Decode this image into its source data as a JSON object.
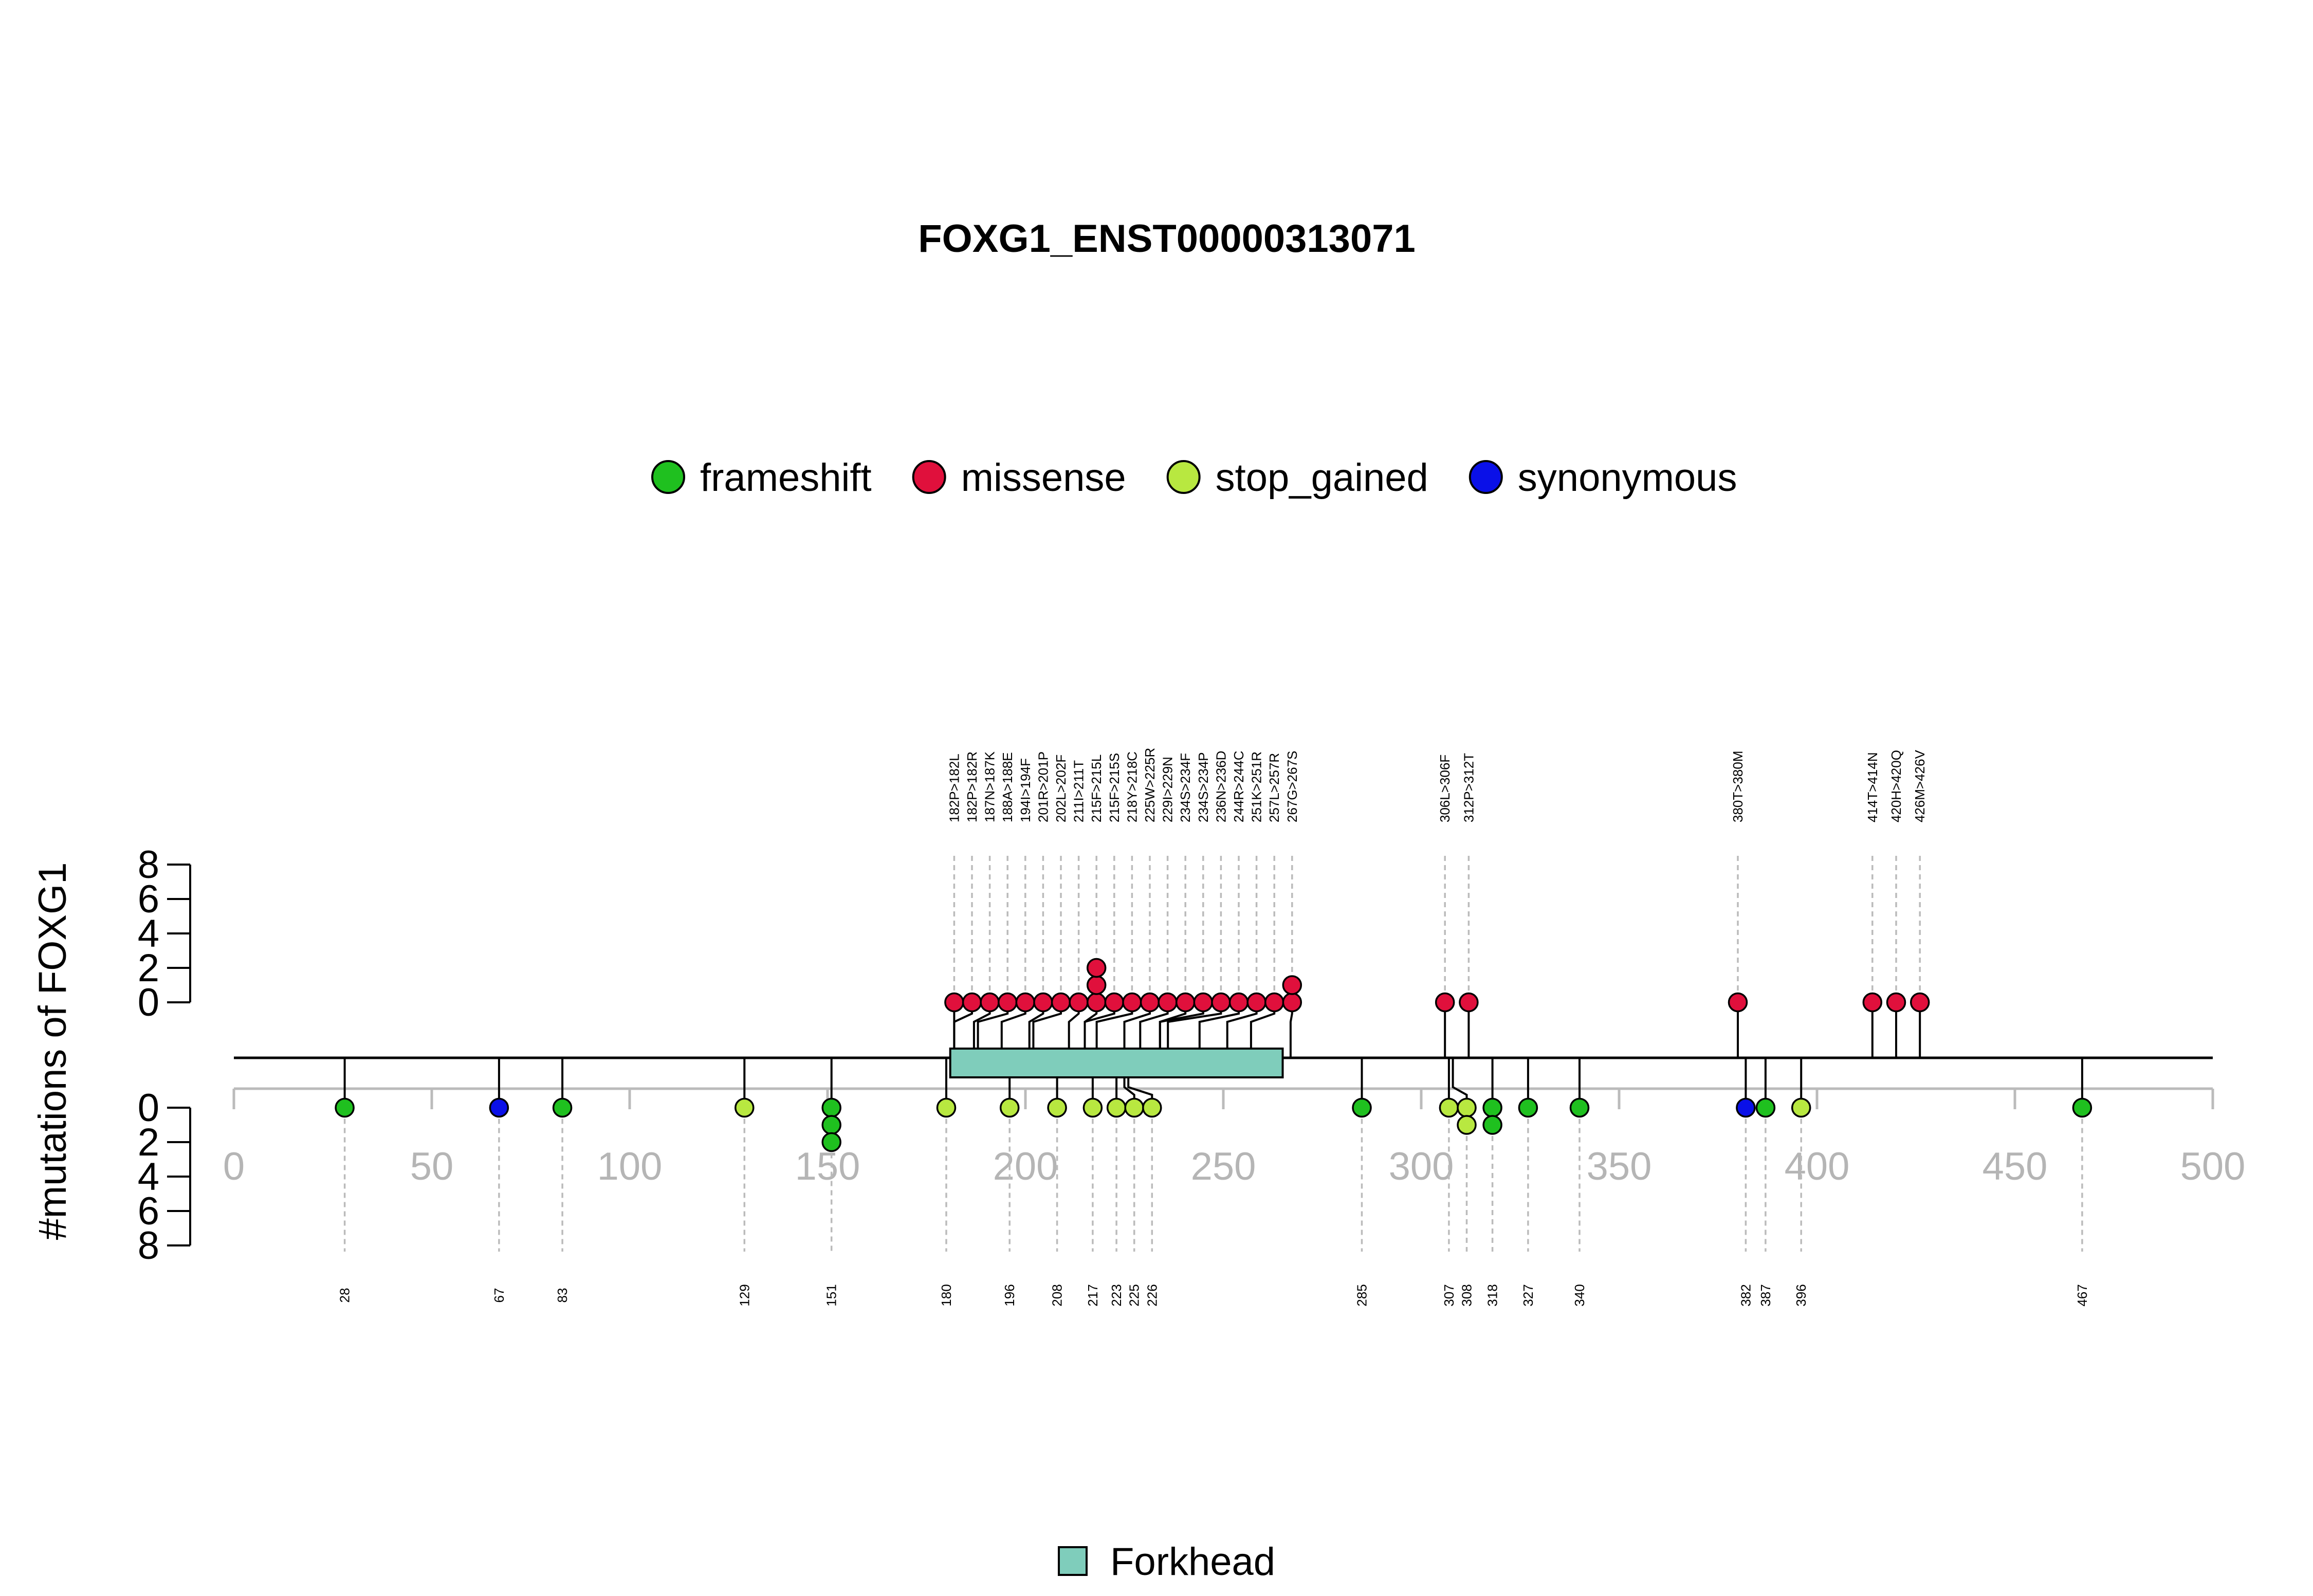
{
  "chart_data": {
    "type": "lollipop",
    "title": "FOXG1_ENST00000313071",
    "ylabel": "#mutations of FOXG1",
    "xlim": [
      0,
      500
    ],
    "x_ticks": [
      0,
      50,
      100,
      150,
      200,
      250,
      300,
      350,
      400,
      450,
      500
    ],
    "y_ticks": [
      0,
      2,
      4,
      6,
      8
    ],
    "legend": [
      {
        "name": "frameshift",
        "color": "#1FC01F"
      },
      {
        "name": "missense",
        "color": "#E0103C"
      },
      {
        "name": "stop_gained",
        "color": "#B8E840"
      },
      {
        "name": "synonymous",
        "color": "#0A10E8"
      }
    ],
    "domains": [
      {
        "name": "Forkhead",
        "start": 181,
        "end": 265,
        "color": "#7FCDBB"
      }
    ],
    "upper_mutations": [
      {
        "label": "182P>182L",
        "type": "missense",
        "count": 1
      },
      {
        "label": "182P>182R",
        "type": "missense",
        "count": 1
      },
      {
        "label": "187N>187K",
        "type": "missense",
        "count": 1
      },
      {
        "label": "188A>188E",
        "type": "missense",
        "count": 1
      },
      {
        "label": "194I>194F",
        "type": "missense",
        "count": 1
      },
      {
        "label": "201R>201P",
        "type": "missense",
        "count": 1
      },
      {
        "label": "202L>202F",
        "type": "missense",
        "count": 1
      },
      {
        "label": "211I>211T",
        "type": "missense",
        "count": 1
      },
      {
        "label": "215F>215L",
        "type": "missense",
        "count": 3
      },
      {
        "label": "215F>215S",
        "type": "missense",
        "count": 1
      },
      {
        "label": "218Y>218C",
        "type": "missense",
        "count": 1
      },
      {
        "label": "225W>225R",
        "type": "missense",
        "count": 1
      },
      {
        "label": "229I>229N",
        "type": "missense",
        "count": 1
      },
      {
        "label": "234S>234F",
        "type": "missense",
        "count": 1
      },
      {
        "label": "234S>234P",
        "type": "missense",
        "count": 1
      },
      {
        "label": "236N>236D",
        "type": "missense",
        "count": 1
      },
      {
        "label": "244R>244C",
        "type": "missense",
        "count": 1
      },
      {
        "label": "251K>251R",
        "type": "missense",
        "count": 1
      },
      {
        "label": "257L>257R",
        "type": "missense",
        "count": 1
      },
      {
        "label": "267G>267S",
        "type": "missense",
        "count": 2
      },
      {
        "label": "306L>306F",
        "type": "missense",
        "count": 1
      },
      {
        "label": "312P>312T",
        "type": "missense",
        "count": 1
      },
      {
        "label": "380T>380M",
        "type": "missense",
        "count": 1
      },
      {
        "label": "414T>414N",
        "type": "missense",
        "count": 1
      },
      {
        "label": "420H>420Q",
        "type": "missense",
        "count": 1
      },
      {
        "label": "426M>426V",
        "type": "missense",
        "count": 1
      }
    ],
    "lower_mutations": [
      {
        "label": "28",
        "type": "frameshift",
        "count": 1
      },
      {
        "label": "67",
        "type": "synonymous",
        "count": 1
      },
      {
        "label": "83",
        "type": "frameshift",
        "count": 1
      },
      {
        "label": "129",
        "type": "stop_gained",
        "count": 1
      },
      {
        "label": "151",
        "type": "frameshift",
        "count": 3
      },
      {
        "label": "180",
        "type": "stop_gained",
        "count": 1
      },
      {
        "label": "196",
        "type": "stop_gained",
        "count": 1
      },
      {
        "label": "208",
        "type": "stop_gained",
        "count": 1
      },
      {
        "label": "217",
        "type": "stop_gained",
        "count": 1
      },
      {
        "label": "223",
        "type": "stop_gained",
        "count": 1
      },
      {
        "label": "225",
        "type": "stop_gained",
        "count": 1
      },
      {
        "label": "226",
        "type": "stop_gained",
        "count": 1
      },
      {
        "label": "285",
        "type": "frameshift",
        "count": 1
      },
      {
        "label": "307",
        "type": "stop_gained",
        "count": 1
      },
      {
        "label": "308",
        "type": "stop_gained",
        "count": 2
      },
      {
        "label": "318",
        "type": "frameshift",
        "count": 2
      },
      {
        "label": "327",
        "type": "frameshift",
        "count": 1
      },
      {
        "label": "340",
        "type": "frameshift",
        "count": 1
      },
      {
        "label": "382",
        "type": "synonymous",
        "count": 1
      },
      {
        "label": "387",
        "type": "frameshift",
        "count": 1
      },
      {
        "label": "396",
        "type": "stop_gained",
        "count": 1
      },
      {
        "label": "467",
        "type": "frameshift",
        "count": 1
      }
    ]
  }
}
